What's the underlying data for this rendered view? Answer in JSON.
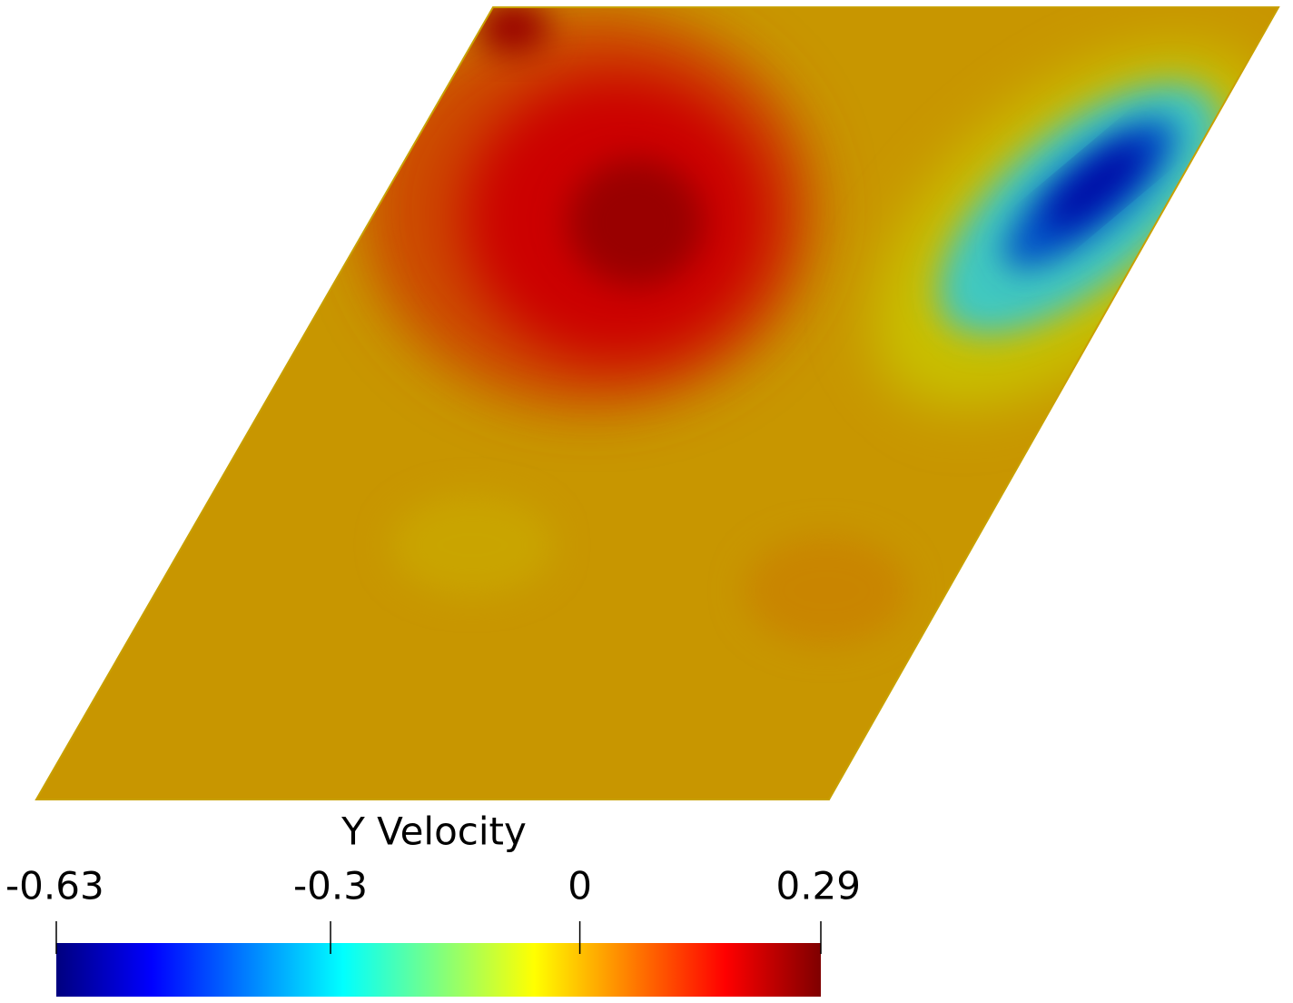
{
  "chart_data": {
    "type": "contour",
    "colorbar_title": "Y Velocity",
    "clim": [
      -0.63,
      0.29
    ],
    "ticks": [
      -0.63,
      -0.3,
      0,
      0.29
    ],
    "colormap": [
      "#00007f",
      "#0000ff",
      "#007fff",
      "#00ffff",
      "#7fff7f",
      "#ffff00",
      "#ff7f00",
      "#ff0000",
      "#7f0000"
    ]
  }
}
